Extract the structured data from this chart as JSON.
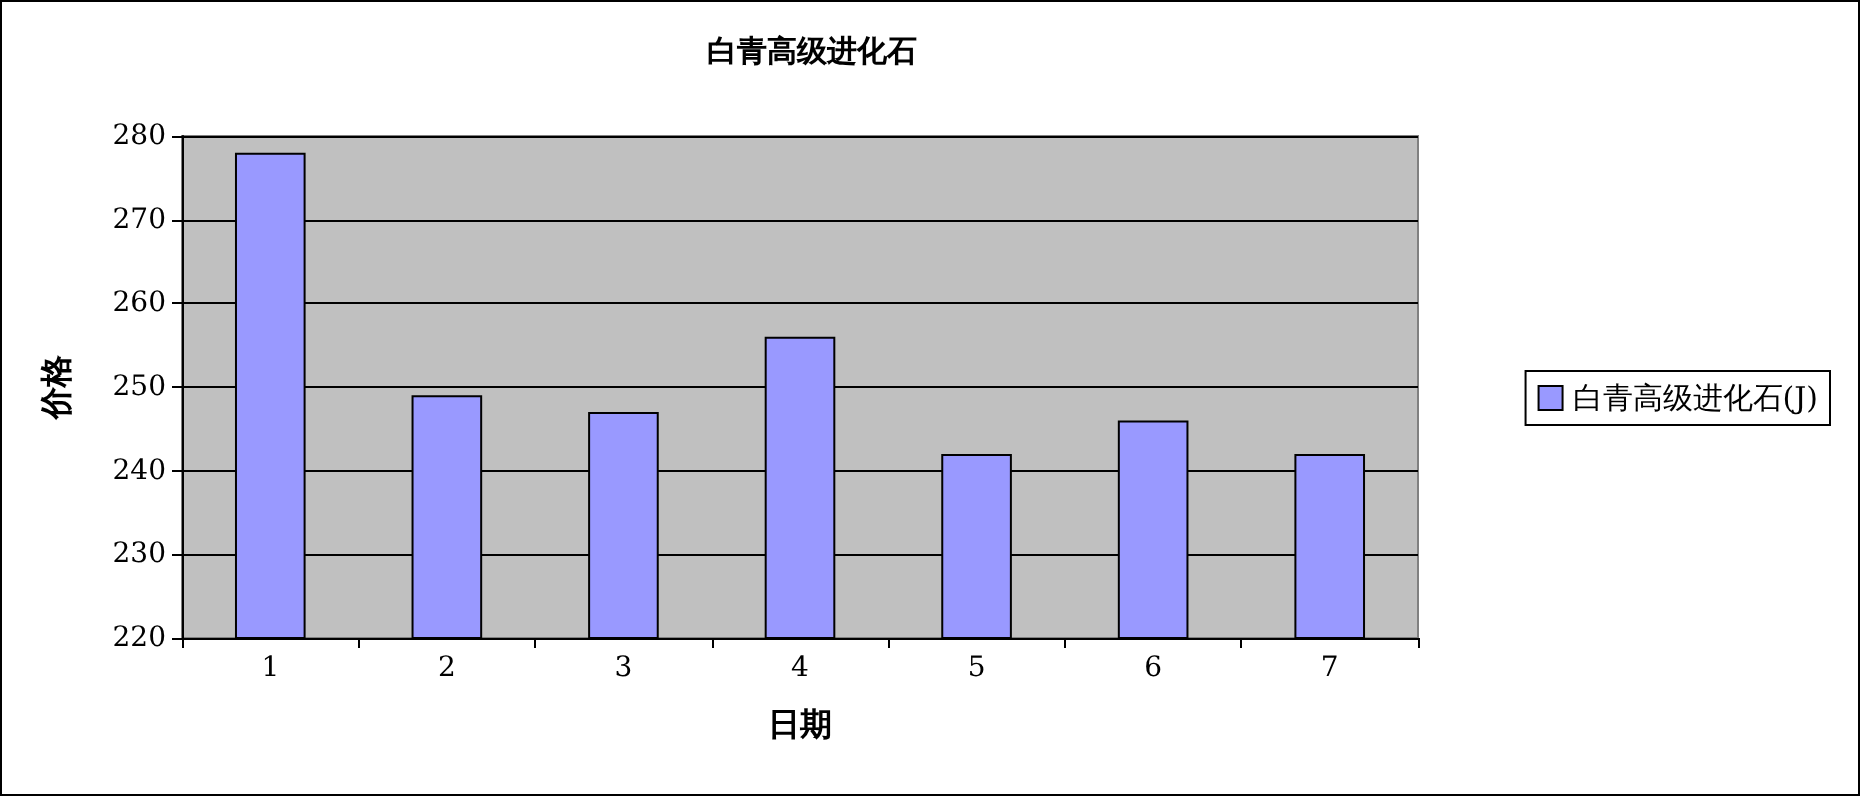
{
  "chart_data": {
    "type": "bar",
    "title": "白青高级进化石",
    "xlabel": "日期",
    "ylabel": "价格",
    "categories": [
      "1",
      "2",
      "3",
      "4",
      "5",
      "6",
      "7"
    ],
    "series": [
      {
        "name": "白青高级进化石(J)",
        "color": "#9999ff",
        "values": [
          278,
          249,
          247,
          256,
          242,
          246,
          242
        ]
      }
    ],
    "ylim": [
      220,
      280
    ],
    "yticks": [
      220,
      230,
      240,
      250,
      260,
      270,
      280
    ],
    "grid": "y",
    "legend": "right"
  }
}
